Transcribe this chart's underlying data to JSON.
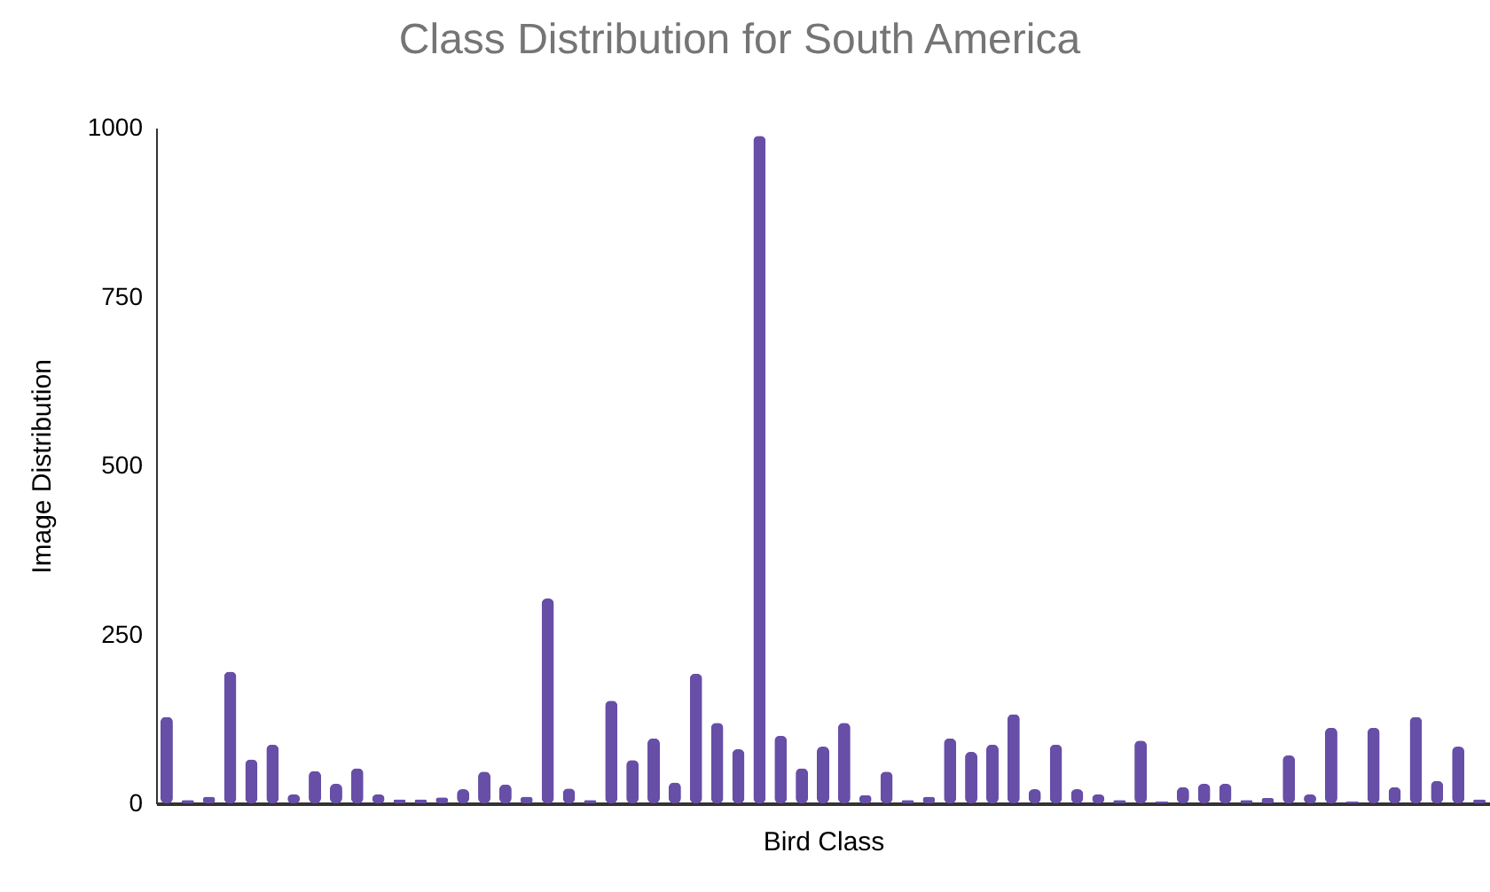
{
  "chart_data": {
    "type": "bar",
    "title": "Class Distribution for South America",
    "xlabel": "Bird Class",
    "ylabel": "Image Distribution",
    "categories": [
      null,
      null,
      null,
      null,
      null,
      null,
      null,
      null,
      null,
      null,
      null,
      null,
      null,
      null,
      null,
      null,
      null,
      null,
      null,
      null,
      null,
      null,
      null,
      null,
      null,
      null,
      null,
      null,
      null,
      null,
      null,
      null,
      null,
      null,
      null,
      null,
      null,
      null,
      null,
      null,
      null,
      null,
      null,
      null,
      null,
      null,
      null,
      null,
      null,
      null,
      null,
      null,
      null,
      null,
      null,
      null,
      null,
      null,
      null,
      null,
      null,
      null,
      null
    ],
    "values": [
      128,
      5,
      10,
      195,
      65,
      87,
      13,
      48,
      29,
      52,
      13,
      6,
      6,
      9,
      21,
      47,
      28,
      10,
      303,
      22,
      5,
      152,
      64,
      96,
      31,
      192,
      119,
      80,
      988,
      100,
      52,
      84,
      119,
      12,
      47,
      5,
      10,
      96,
      76,
      87,
      132,
      21,
      87,
      21,
      13,
      5,
      93,
      3,
      24,
      29,
      29,
      5,
      8,
      71,
      13,
      112,
      3,
      112,
      24,
      128,
      33,
      84,
      6
    ],
    "color": "#674ea7",
    "ylim": [
      0,
      1000
    ],
    "yticks": [
      0,
      250,
      500,
      750,
      1000
    ],
    "grid": false
  }
}
